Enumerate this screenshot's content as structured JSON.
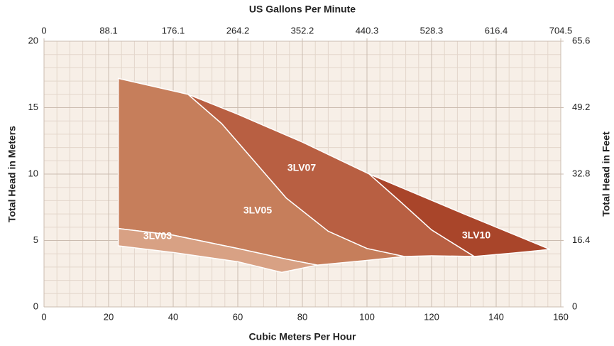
{
  "chart_data": {
    "type": "area",
    "xlabel": "Cubic Meters Per Hour",
    "x2label": "US Gallons Per Minute",
    "ylabel": "Total Head in Meters",
    "y2label": "Total Head in Feet",
    "xlim": [
      0,
      160
    ],
    "xticks": [
      0,
      20,
      40,
      60,
      80,
      100,
      120,
      140,
      160
    ],
    "x2lim": [
      0,
      704.5
    ],
    "x2ticks": [
      0,
      88.1,
      176.1,
      264.2,
      352.2,
      440.3,
      528.3,
      616.4,
      704.5
    ],
    "ylim": [
      0,
      20
    ],
    "yticks": [
      0,
      5,
      10,
      15,
      20
    ],
    "y2lim": [
      0,
      65.6
    ],
    "y2ticks": [
      0,
      16.4,
      32.8,
      49.2,
      65.6
    ],
    "grid": true,
    "minor_grid": {
      "x": 4,
      "y": 1
    },
    "series": [
      {
        "name": "3LV05",
        "color": "#c67e5b",
        "x": [
          23,
          23,
          44.6,
          55,
          65,
          75,
          88,
          100,
          111.6,
          100,
          84.6,
          75,
          60,
          40,
          23
        ],
        "values": [
          5.9,
          17.2,
          16,
          13.8,
          11,
          8.2,
          5.7,
          4.4,
          3.8,
          3.5,
          3.15,
          3.6,
          4.4,
          5.4,
          5.9
        ]
      },
      {
        "name": "3LV07",
        "color": "#b85f42",
        "x": [
          44.6,
          60,
          80,
          100.7,
          110,
          120,
          133.2,
          120,
          111.6,
          100,
          88,
          75,
          65,
          55,
          44.6
        ],
        "values": [
          16,
          14.5,
          12.4,
          10,
          8,
          5.8,
          3.8,
          3.85,
          3.8,
          4.4,
          5.7,
          8.2,
          11,
          13.8,
          16
        ]
      },
      {
        "name": "3LV10",
        "color": "#a9452a",
        "x": [
          100.7,
          130,
          156.7,
          145,
          133.2,
          120,
          110,
          100.7
        ],
        "values": [
          10,
          7,
          4.33,
          4.05,
          3.8,
          5.8,
          8,
          10
        ]
      },
      {
        "name": "3LV03",
        "color": "#d8a184",
        "x": [
          23,
          40,
          60,
          75,
          84.6,
          73.6,
          60,
          40,
          23
        ],
        "values": [
          5.9,
          5.4,
          4.4,
          3.6,
          3.15,
          2.6,
          3.4,
          4.1,
          4.6
        ]
      }
    ]
  }
}
